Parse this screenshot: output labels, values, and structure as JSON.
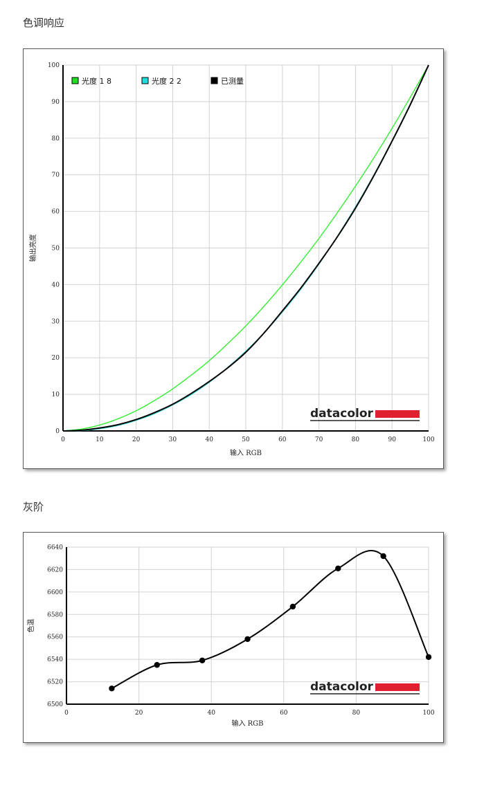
{
  "sections": {
    "tone_title": "色调响应",
    "gray_title": "灰阶"
  },
  "brand": {
    "logo_text": "datacolor",
    "bar_color": "#e0202f"
  },
  "chart_data": [
    {
      "type": "line",
      "title": "色调响应",
      "xlabel": "输入 RGB",
      "ylabel": "输出亮度",
      "xlim": [
        0,
        100
      ],
      "ylim": [
        0,
        100
      ],
      "xticks": [
        0,
        10,
        20,
        30,
        40,
        50,
        60,
        70,
        80,
        90,
        100
      ],
      "yticks": [
        0,
        10,
        20,
        30,
        40,
        50,
        60,
        70,
        80,
        90,
        100
      ],
      "grid": true,
      "legend_position": "top-left",
      "series": [
        {
          "name": "光度 1.8",
          "legend_label": "光度 1 8",
          "color": "#33ee33",
          "x": [
            0,
            5,
            10,
            15,
            20,
            25,
            30,
            35,
            40,
            45,
            50,
            55,
            60,
            65,
            70,
            75,
            80,
            85,
            90,
            95,
            100
          ],
          "y": [
            0,
            0.5,
            1.6,
            3.3,
            5.5,
            8.3,
            11.5,
            15.2,
            19.2,
            23.8,
            28.7,
            34.1,
            39.9,
            46.1,
            52.6,
            59.6,
            66.9,
            74.6,
            82.7,
            91.2,
            100
          ]
        },
        {
          "name": "光度 2.2",
          "legend_label": "光度 2 2",
          "color": "#33dddd",
          "x": [
            0,
            5,
            10,
            15,
            20,
            25,
            30,
            35,
            40,
            45,
            50,
            55,
            60,
            65,
            70,
            75,
            80,
            85,
            90,
            95,
            100
          ],
          "y": [
            0,
            0.1,
            0.6,
            1.5,
            2.9,
            4.7,
            7.1,
            9.9,
            13.3,
            17.3,
            21.8,
            26.8,
            32.5,
            38.7,
            45.6,
            53.1,
            61.2,
            69.9,
            79.3,
            89.3,
            100
          ]
        },
        {
          "name": "已测量",
          "legend_label": "已测量",
          "color": "#000000",
          "x": [
            0,
            5,
            10,
            15,
            20,
            25,
            30,
            35,
            40,
            45,
            50,
            55,
            60,
            65,
            70,
            75,
            80,
            85,
            90,
            95,
            100
          ],
          "y": [
            0,
            0.2,
            0.8,
            1.7,
            3.1,
            5.0,
            7.3,
            10.2,
            13.5,
            17.2,
            21.5,
            26.8,
            32.8,
            39.0,
            45.8,
            53.0,
            60.9,
            69.7,
            79.2,
            89.2,
            100
          ]
        }
      ]
    },
    {
      "type": "line",
      "title": "灰阶",
      "xlabel": "输入 RGB",
      "ylabel": "色温",
      "xlim": [
        0,
        100
      ],
      "ylim": [
        6500,
        6640
      ],
      "xticks": [
        0,
        20,
        40,
        60,
        80,
        100
      ],
      "yticks": [
        6500,
        6520,
        6540,
        6560,
        6580,
        6600,
        6620,
        6640
      ],
      "grid": true,
      "series": [
        {
          "name": "",
          "color": "#000000",
          "x": [
            12.5,
            25,
            37.5,
            50,
            62.5,
            75,
            87.5,
            100
          ],
          "y": [
            6514,
            6535,
            6539,
            6558,
            6587,
            6621,
            6632,
            6542
          ]
        }
      ]
    }
  ]
}
